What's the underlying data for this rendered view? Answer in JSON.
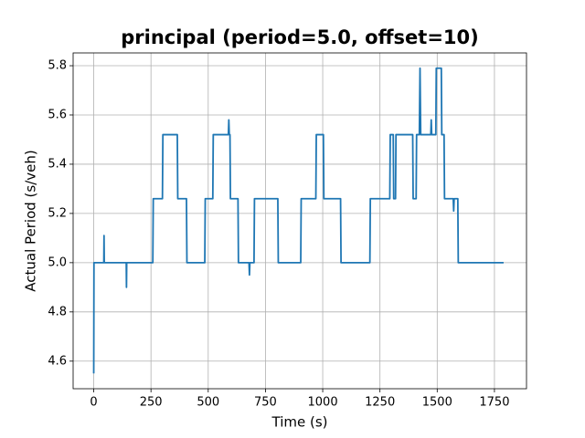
{
  "chart_data": {
    "type": "line",
    "title": "principal (period=5.0, offset=10)",
    "title_color": "#8b0000",
    "x_label": "Time (s)",
    "y_label": "Actual Period (s/veh)",
    "xlim": [
      -90,
      1890
    ],
    "ylim": [
      4.488,
      5.852
    ],
    "xticks": [
      0,
      250,
      500,
      750,
      1000,
      1250,
      1500,
      1750
    ],
    "yticks": [
      4.6,
      4.8,
      {
        "value": 5,
        "label": "5.0"
      },
      5.2,
      5.4,
      5.6,
      5.8
    ],
    "grid": true,
    "series": [
      {
        "color": "#1f77b4",
        "x": [
          0,
          1,
          44,
          45,
          46,
          142,
          143,
          144,
          258,
          260,
          300,
          302,
          365,
          367,
          405,
          407,
          485,
          487,
          520,
          522,
          588,
          590,
          592,
          595,
          597,
          630,
          632,
          678,
          680,
          682,
          700,
          702,
          804,
          806,
          904,
          906,
          970,
          972,
          1003,
          1005,
          1078,
          1080,
          1206,
          1208,
          1293,
          1295,
          1308,
          1310,
          1318,
          1320,
          1393,
          1395,
          1408,
          1410,
          1422,
          1425,
          1428,
          1472,
          1474,
          1476,
          1494,
          1496,
          1518,
          1520,
          1530,
          1532,
          1570,
          1572,
          1574,
          1590,
          1592,
          1790
        ],
        "values": [
          4.55,
          5.0,
          5.0,
          5.11,
          5.0,
          5.0,
          4.9,
          5.0,
          5.0,
          5.26,
          5.26,
          5.52,
          5.52,
          5.26,
          5.26,
          5.0,
          5.0,
          5.26,
          5.26,
          5.52,
          5.52,
          5.58,
          5.52,
          5.52,
          5.26,
          5.26,
          5.0,
          5.0,
          4.95,
          5.0,
          5.0,
          5.26,
          5.26,
          5.0,
          5.0,
          5.26,
          5.26,
          5.52,
          5.52,
          5.26,
          5.26,
          5.0,
          5.0,
          5.26,
          5.26,
          5.52,
          5.52,
          5.26,
          5.26,
          5.52,
          5.52,
          5.26,
          5.26,
          5.52,
          5.52,
          5.79,
          5.52,
          5.52,
          5.58,
          5.52,
          5.52,
          5.79,
          5.79,
          5.52,
          5.52,
          5.26,
          5.26,
          5.21,
          5.26,
          5.26,
          5.0,
          5.0
        ]
      }
    ]
  }
}
